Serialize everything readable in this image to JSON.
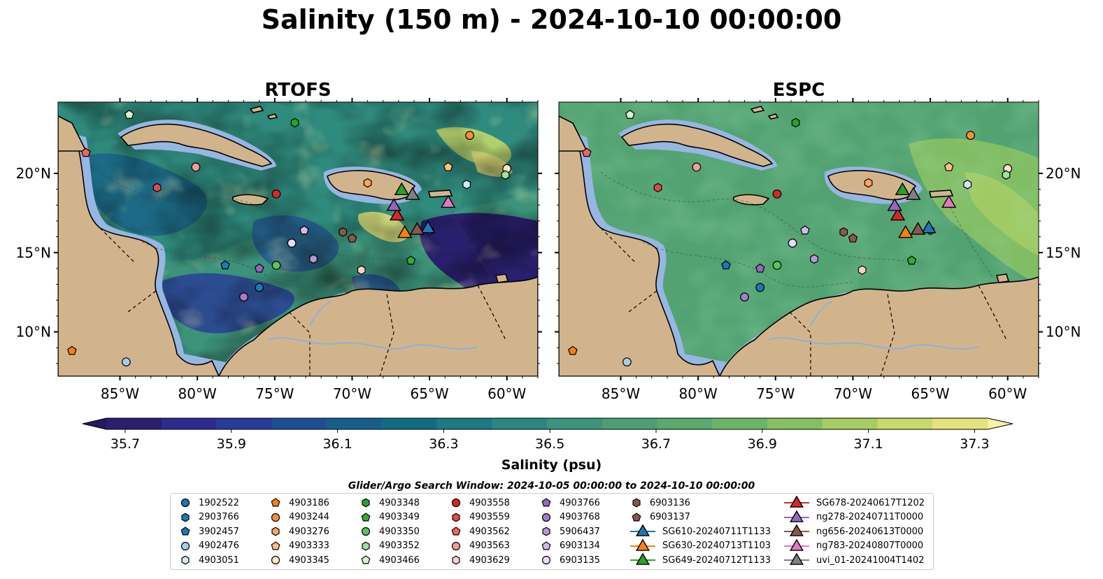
{
  "title": "Salinity (150 m) - 2024-10-10 00:00:00",
  "panels": [
    {
      "title": "RTOFS",
      "style": "rtofs"
    },
    {
      "title": "ESPC",
      "style": "espc"
    }
  ],
  "axes": {
    "lon_ticks": [
      "85°W",
      "80°W",
      "75°W",
      "70°W",
      "65°W",
      "60°W"
    ],
    "lat_ticks": [
      "20°N",
      "15°N",
      "10°N"
    ],
    "lon_range": [
      -89,
      -58
    ],
    "lat_range": [
      7.2,
      24.5
    ]
  },
  "colorbar": {
    "label": "Salinity (psu)",
    "ticks": [
      "35.7",
      "35.9",
      "36.1",
      "36.3",
      "36.5",
      "36.7",
      "36.9",
      "37.1",
      "37.3"
    ],
    "colors": [
      "#2a1f6e",
      "#2e2b8f",
      "#283b99",
      "#1f4f93",
      "#175f8a",
      "#136c86",
      "#1b7a83",
      "#2a877f",
      "#3c937a",
      "#4c9e75",
      "#5ba96f",
      "#6db468",
      "#86c063",
      "#a6cd63",
      "#c7da6a",
      "#e5e47c"
    ]
  },
  "search_window": "Glider/Argo Search Window: 2024-10-05 00:00:00 to 2024-10-10 00:00:00",
  "legend": [
    {
      "label": "1902522",
      "marker": "circle",
      "color": "#1f77b4",
      "lon": -76.0,
      "lat": 12.8
    },
    {
      "label": "2903766",
      "marker": "hexagon",
      "color": "#1f77b4",
      "lon": -65.0,
      "lat": 16.4
    },
    {
      "label": "3902457",
      "marker": "pentagon",
      "color": "#1f77b4",
      "lon": -78.2,
      "lat": 14.2
    },
    {
      "label": "4902476",
      "marker": "circle",
      "color": "#a6cee3",
      "lon": -84.6,
      "lat": 8.1
    },
    {
      "label": "4903051",
      "marker": "hexagon",
      "color": "#cfe8f7",
      "lon": -62.6,
      "lat": 19.3
    },
    {
      "label": "4903186",
      "marker": "pentagon",
      "color": "#ff7f0e",
      "lon": -88.1,
      "lat": 8.8
    },
    {
      "label": "4903244",
      "marker": "circle",
      "color": "#ff8c3a",
      "lon": -62.4,
      "lat": 22.4
    },
    {
      "label": "4903276",
      "marker": "hexagon",
      "color": "#ffa45c",
      "lon": -69.0,
      "lat": 19.4
    },
    {
      "label": "4903333",
      "marker": "pentagon",
      "color": "#ffbe86",
      "lon": -63.8,
      "lat": 20.4
    },
    {
      "label": "4903345",
      "marker": "circle",
      "color": "#ffe4c7",
      "lon": -60.0,
      "lat": 20.3
    },
    {
      "label": "4903348",
      "marker": "hexagon",
      "color": "#2ca02c",
      "lon": -73.7,
      "lat": 23.2
    },
    {
      "label": "4903349",
      "marker": "pentagon",
      "color": "#35a83a",
      "lon": -66.2,
      "lat": 14.5
    },
    {
      "label": "4903350",
      "marker": "circle",
      "color": "#5bc35b",
      "lon": -74.9,
      "lat": 14.2
    },
    {
      "label": "4903352",
      "marker": "hexagon",
      "color": "#9fe0a0",
      "lon": -60.1,
      "lat": 19.9
    },
    {
      "label": "4903466",
      "marker": "pentagon",
      "color": "#d6f5d0",
      "lon": -84.4,
      "lat": 23.7
    },
    {
      "label": "4903558",
      "marker": "circle",
      "color": "#d62728",
      "lon": -74.9,
      "lat": 18.7
    },
    {
      "label": "4903559",
      "marker": "hexagon",
      "color": "#e04a4a",
      "lon": -82.6,
      "lat": 19.1
    },
    {
      "label": "4903562",
      "marker": "pentagon",
      "color": "#ee6464",
      "lon": -87.2,
      "lat": 21.3
    },
    {
      "label": "4903563",
      "marker": "circle",
      "color": "#f59a96",
      "lon": -80.1,
      "lat": 20.4
    },
    {
      "label": "4903629",
      "marker": "hexagon",
      "color": "#fbd0cc",
      "lon": -69.4,
      "lat": 13.9
    },
    {
      "label": "4903766",
      "marker": "pentagon",
      "color": "#9467bd",
      "lon": -76.0,
      "lat": 14.0
    },
    {
      "label": "4903768",
      "marker": "circle",
      "color": "#a47cc9",
      "lon": -77.0,
      "lat": 12.2
    },
    {
      "label": "5906437",
      "marker": "hexagon",
      "color": "#b996d8",
      "lon": -72.5,
      "lat": 14.6
    },
    {
      "label": "6903134",
      "marker": "pentagon",
      "color": "#d4b8ea",
      "lon": -73.1,
      "lat": 16.4
    },
    {
      "label": "6903135",
      "marker": "circle",
      "color": "#ecd9f7",
      "lon": -73.9,
      "lat": 15.6
    },
    {
      "label": "6903136",
      "marker": "hexagon",
      "color": "#8c564b",
      "lon": -70.6,
      "lat": 16.3
    },
    {
      "label": "6903137",
      "marker": "pentagon",
      "color": "#8c564b",
      "lon": -70.0,
      "lat": 15.9
    },
    {
      "label": "SG610-20240711T1133",
      "marker": "triangle",
      "color": "#1f77b4",
      "lon": -65.1,
      "lat": 16.5
    },
    {
      "label": "SG630-20240713T1103",
      "marker": "triangle",
      "color": "#ff7f0e",
      "lon": -66.6,
      "lat": 16.2
    },
    {
      "label": "SG649-20240712T1133",
      "marker": "triangle",
      "color": "#2ca02c",
      "lon": -66.8,
      "lat": 18.9
    },
    {
      "label": "SG678-20240617T1202",
      "marker": "triangle",
      "color": "#d62728",
      "lon": -67.1,
      "lat": 17.3
    },
    {
      "label": "ng278-20240711T0000",
      "marker": "triangle",
      "color": "#9467bd",
      "lon": -67.3,
      "lat": 17.9
    },
    {
      "label": "ng656-20240613T0000",
      "marker": "triangle",
      "color": "#8c564b",
      "lon": -65.8,
      "lat": 16.4
    },
    {
      "label": "ng783-20240807T0000",
      "marker": "triangle",
      "color": "#e377c2",
      "lon": -63.8,
      "lat": 18.1
    },
    {
      "label": "uvi_01-20241004T1402",
      "marker": "triangle",
      "color": "#7f7f7f",
      "lon": -66.1,
      "lat": 18.6
    }
  ],
  "colors": {
    "land": "#d2b48c",
    "shelf": "#97b6e3",
    "deep": "#261c68"
  }
}
